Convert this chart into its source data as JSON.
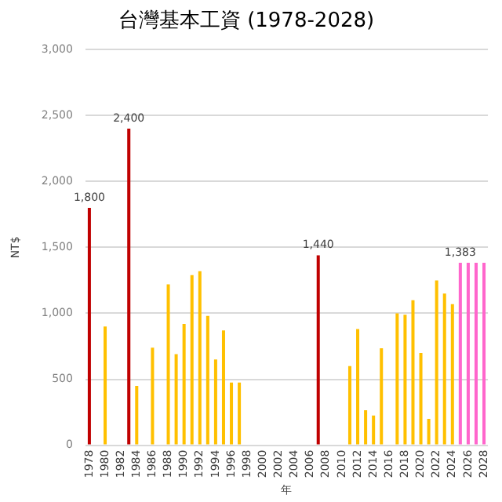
{
  "chart_data": {
    "type": "bar",
    "title": "台灣基本工資 (1978-2028)",
    "xlabel": "年",
    "ylabel": "NT$",
    "categories": [
      "1978",
      null,
      "1980",
      null,
      "1982",
      null,
      "1984",
      null,
      "1986",
      null,
      "1988",
      null,
      "1990",
      null,
      "1992",
      null,
      "1994",
      null,
      "1996",
      null,
      "1998",
      null,
      "2000",
      null,
      "2002",
      null,
      "2004",
      null,
      "2006",
      null,
      "2008",
      null,
      "2010",
      null,
      "2012",
      null,
      "2014",
      null,
      "2016",
      null,
      "2018",
      null,
      "2020",
      null,
      "2022",
      null,
      "2024",
      null,
      "2026",
      null,
      "2028"
    ],
    "values": [
      1800,
      null,
      900,
      null,
      null,
      2400,
      450,
      null,
      740,
      null,
      1220,
      690,
      920,
      1290,
      1320,
      980,
      650,
      870,
      475,
      475,
      null,
      null,
      null,
      null,
      null,
      null,
      null,
      null,
      null,
      1440,
      null,
      null,
      null,
      600,
      880,
      265,
      225,
      735,
      null,
      1000,
      990,
      1100,
      700,
      200,
      1250,
      1150,
      1070,
      1383,
      1383,
      1383,
      1383
    ],
    "colors": [
      "#c00000",
      "#ffc000",
      "#ffc000",
      "#ffc000",
      "#ffc000",
      "#c00000",
      "#ffc000",
      "#ffc000",
      "#ffc000",
      "#ffc000",
      "#ffc000",
      "#ffc000",
      "#ffc000",
      "#ffc000",
      "#ffc000",
      "#ffc000",
      "#ffc000",
      "#ffc000",
      "#ffc000",
      "#ffc000",
      "#ffc000",
      "#ffc000",
      "#ffc000",
      "#ffc000",
      "#ffc000",
      "#ffc000",
      "#ffc000",
      "#ffc000",
      "#ffc000",
      "#c00000",
      "#ffc000",
      "#ffc000",
      "#ffc000",
      "#ffc000",
      "#ffc000",
      "#ffc000",
      "#ffc000",
      "#ffc000",
      "#ffc000",
      "#ffc000",
      "#ffc000",
      "#ffc000",
      "#ffc000",
      "#ffc000",
      "#ffc000",
      "#ffc000",
      "#ffc000",
      "#ff66cc",
      "#ff66cc",
      "#ff66cc",
      "#ff66cc"
    ],
    "value_labels": [
      "1,800",
      null,
      null,
      null,
      null,
      "2,400",
      null,
      null,
      null,
      null,
      null,
      null,
      null,
      null,
      null,
      null,
      null,
      null,
      null,
      null,
      null,
      null,
      null,
      null,
      null,
      null,
      null,
      null,
      null,
      "1,440",
      null,
      null,
      null,
      null,
      null,
      null,
      null,
      null,
      null,
      null,
      null,
      null,
      null,
      null,
      null,
      null,
      null,
      "1,383",
      null,
      null,
      null
    ],
    "ylim": [
      0,
      3000
    ],
    "yticks": [
      {
        "value": 0,
        "label": "0"
      },
      {
        "value": 500,
        "label": "500"
      },
      {
        "value": 1000,
        "label": "1,000"
      },
      {
        "value": 1500,
        "label": "1,500"
      },
      {
        "value": 2000,
        "label": "2,000"
      },
      {
        "value": 2500,
        "label": "2,500"
      },
      {
        "value": 3000,
        "label": "3,000"
      }
    ],
    "grid": "y",
    "legend": false
  }
}
